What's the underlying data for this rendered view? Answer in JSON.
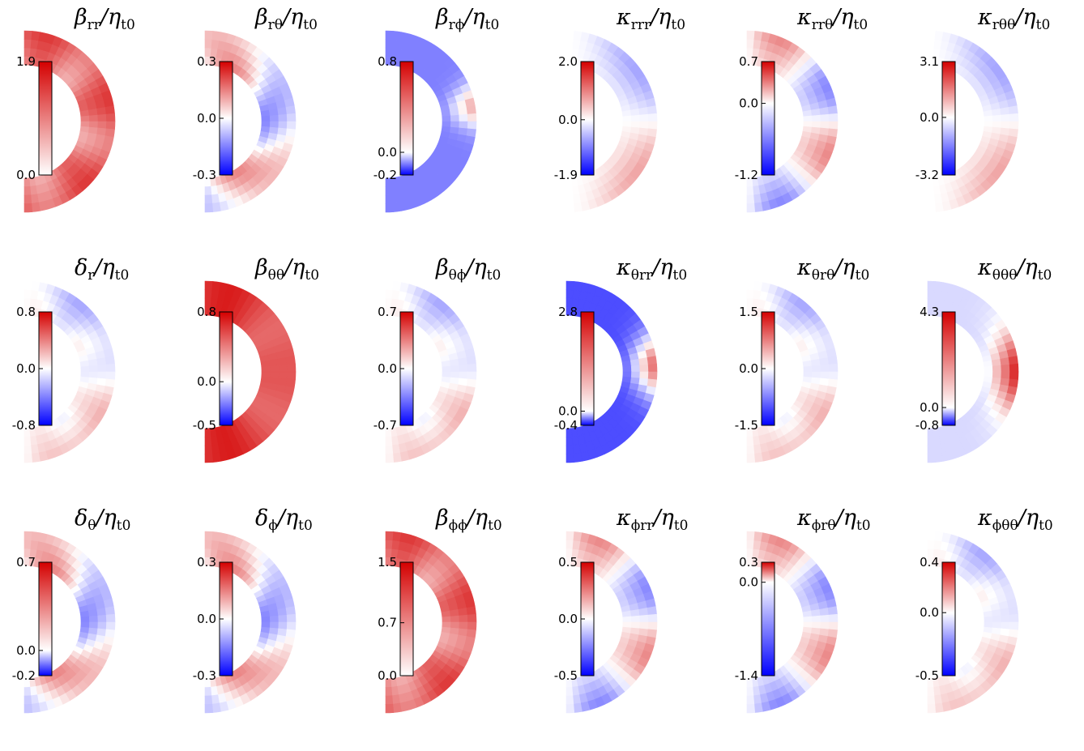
{
  "figure": {
    "colormap": {
      "negative": "#0000ff",
      "zero": "#ffffff",
      "positive": "#d40000"
    },
    "panels": [
      {
        "title_symbol": "β",
        "title_sub": "rr",
        "title_tail": "/η",
        "title_tail_sub": "t0",
        "ticks": [
          "1.9",
          "0.0"
        ],
        "tick_values": [
          1.9,
          0.0
        ],
        "vmin": 0.0,
        "vmax": 1.9,
        "field": "mostly-positive"
      },
      {
        "title_symbol": "β",
        "title_sub": "rθ",
        "title_tail": "/η",
        "title_tail_sub": "t0",
        "ticks": [
          "0.3",
          "0.0",
          "-0.3"
        ],
        "tick_values": [
          0.3,
          0.0,
          -0.3
        ],
        "vmin": -0.3,
        "vmax": 0.3,
        "field": "mixed"
      },
      {
        "title_symbol": "β",
        "title_sub": "rϕ",
        "title_tail": "/η",
        "title_tail_sub": "t0",
        "ticks": [
          "0.8",
          "0.0",
          "-0.2"
        ],
        "tick_values": [
          0.8,
          0.0,
          -0.2
        ],
        "vmin": -0.2,
        "vmax": 0.8,
        "field": "mostly-negative-light"
      },
      {
        "title_symbol": "κ",
        "title_sub": "rrr",
        "title_tail": "/η",
        "title_tail_sub": "t0",
        "ticks": [
          "2.0",
          "0.0",
          "-1.9"
        ],
        "tick_values": [
          2.0,
          0.0,
          -1.9
        ],
        "vmin": -1.9,
        "vmax": 2.0,
        "field": "antisymmetric"
      },
      {
        "title_symbol": "κ",
        "title_sub": "rrθ",
        "title_tail": "/η",
        "title_tail_sub": "t0",
        "ticks": [
          "0.7",
          "0.0",
          "-1.2"
        ],
        "tick_values": [
          0.7,
          0.0,
          -1.2
        ],
        "vmin": -1.2,
        "vmax": 0.7,
        "field": "banded"
      },
      {
        "title_symbol": "κ",
        "title_sub": "rθθ",
        "title_tail": "/η",
        "title_tail_sub": "t0",
        "ticks": [
          "3.1",
          "0.0",
          "-3.2"
        ],
        "tick_values": [
          3.1,
          0.0,
          -3.2
        ],
        "vmin": -3.2,
        "vmax": 3.1,
        "field": "antisymmetric"
      },
      {
        "title_symbol": "δ",
        "title_sub": "r",
        "title_tail": "/η",
        "title_tail_sub": "t0",
        "ticks": [
          "0.8",
          "0.0",
          "-0.8"
        ],
        "tick_values": [
          0.8,
          0.0,
          -0.8
        ],
        "vmin": -0.8,
        "vmax": 0.8,
        "field": "antisymmetric-weak"
      },
      {
        "title_symbol": "β",
        "title_sub": "θθ",
        "title_tail": "/η",
        "title_tail_sub": "t0",
        "ticks": [
          "0.8",
          "0.0",
          "-0.5"
        ],
        "tick_values": [
          0.8,
          0.0,
          -0.5
        ],
        "vmin": -0.5,
        "vmax": 0.8,
        "field": "mostly-positive-strong"
      },
      {
        "title_symbol": "β",
        "title_sub": "θϕ",
        "title_tail": "/η",
        "title_tail_sub": "t0",
        "ticks": [
          "0.7",
          "0.0",
          "-0.7"
        ],
        "tick_values": [
          0.7,
          0.0,
          -0.7
        ],
        "vmin": -0.7,
        "vmax": 0.7,
        "field": "antisymmetric-weak"
      },
      {
        "title_symbol": "κ",
        "title_sub": "θrr",
        "title_tail": "/η",
        "title_tail_sub": "t0",
        "ticks": [
          "2.8",
          "0.0",
          "-0.4"
        ],
        "tick_values": [
          2.8,
          0.0,
          -0.4
        ],
        "vmin": -0.4,
        "vmax": 2.8,
        "field": "mostly-negative-flat"
      },
      {
        "title_symbol": "κ",
        "title_sub": "θrθ",
        "title_tail": "/η",
        "title_tail_sub": "t0",
        "ticks": [
          "1.5",
          "0.0",
          "-1.5"
        ],
        "tick_values": [
          1.5,
          0.0,
          -1.5
        ],
        "vmin": -1.5,
        "vmax": 1.5,
        "field": "antisymmetric-weak"
      },
      {
        "title_symbol": "κ",
        "title_sub": "θθθ",
        "title_tail": "/η",
        "title_tail_sub": "t0",
        "ticks": [
          "4.3",
          "0.0",
          "-0.8"
        ],
        "tick_values": [
          4.3,
          0.0,
          -0.8
        ],
        "vmin": -0.8,
        "vmax": 4.3,
        "field": "equator-positive"
      },
      {
        "title_symbol": "δ",
        "title_sub": "θ",
        "title_tail": "/η",
        "title_tail_sub": "t0",
        "ticks": [
          "0.7",
          "0.0",
          "-0.2"
        ],
        "tick_values": [
          0.7,
          0.0,
          -0.2
        ],
        "vmin": -0.2,
        "vmax": 0.7,
        "field": "mixed"
      },
      {
        "title_symbol": "δ",
        "title_sub": "ϕ",
        "title_tail": "/η",
        "title_tail_sub": "t0",
        "ticks": [
          "0.3",
          "0.0",
          "-0.3"
        ],
        "tick_values": [
          0.3,
          0.0,
          -0.3
        ],
        "vmin": -0.3,
        "vmax": 0.3,
        "field": "mixed"
      },
      {
        "title_symbol": "β",
        "title_sub": "ϕϕ",
        "title_tail": "/η",
        "title_tail_sub": "t0",
        "ticks": [
          "1.5",
          "0.7",
          "0.0"
        ],
        "tick_values": [
          1.5,
          0.7,
          0.0
        ],
        "vmin": 0.0,
        "vmax": 1.5,
        "field": "mostly-positive"
      },
      {
        "title_symbol": "κ",
        "title_sub": "ϕrr",
        "title_tail": "/η",
        "title_tail_sub": "t0",
        "ticks": [
          "0.5",
          "0.0",
          "-0.5"
        ],
        "tick_values": [
          0.5,
          0.0,
          -0.5
        ],
        "vmin": -0.5,
        "vmax": 0.5,
        "field": "banded"
      },
      {
        "title_symbol": "κ",
        "title_sub": "ϕrθ",
        "title_tail": "/η",
        "title_tail_sub": "t0",
        "ticks": [
          "0.3",
          "0.0",
          "-1.4"
        ],
        "tick_values": [
          0.3,
          0.0,
          -1.4
        ],
        "vmin": -1.4,
        "vmax": 0.3,
        "field": "banded"
      },
      {
        "title_symbol": "κ",
        "title_sub": "ϕθθ",
        "title_tail": "/η",
        "title_tail_sub": "t0",
        "ticks": [
          "0.4",
          "0.0",
          "-0.5"
        ],
        "tick_values": [
          0.4,
          0.0,
          -0.5
        ],
        "vmin": -0.5,
        "vmax": 0.4,
        "field": "antisymmetric-weak"
      }
    ]
  }
}
